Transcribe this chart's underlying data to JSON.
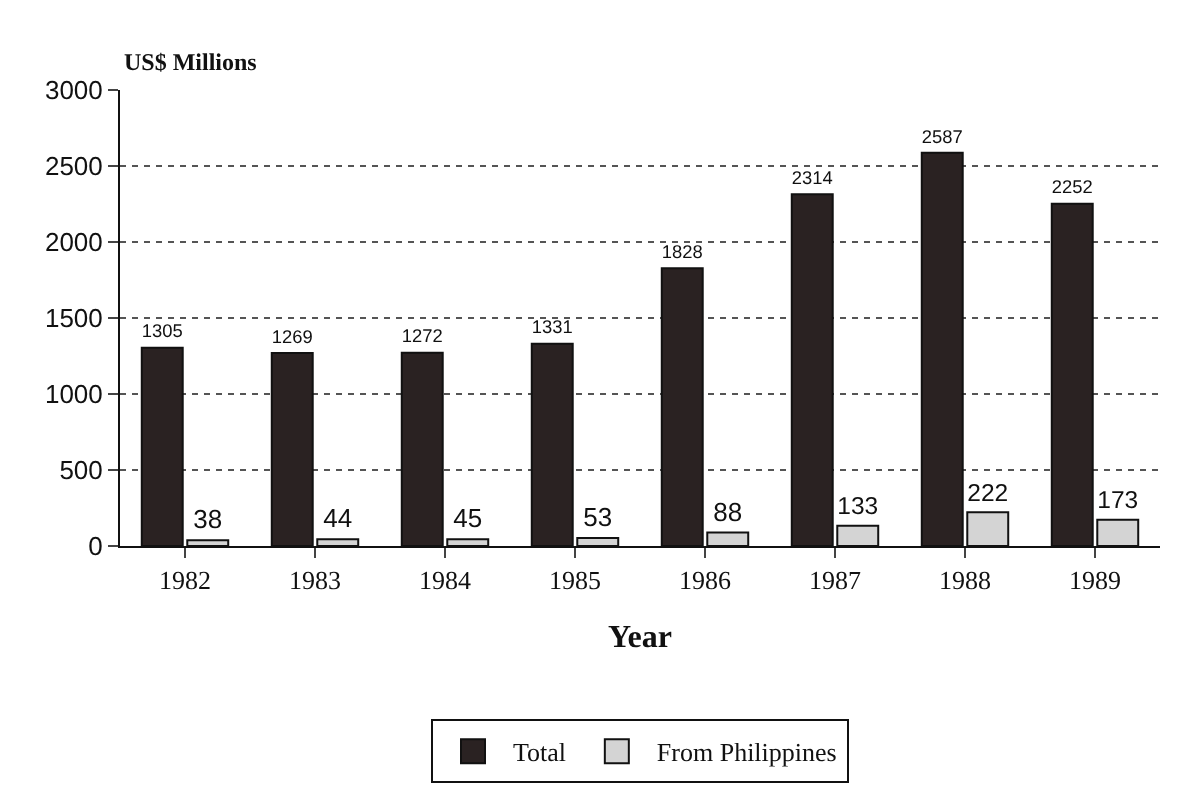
{
  "chart_data": {
    "type": "bar",
    "xlabel": "Year",
    "ylabel": "US$ Millions",
    "categories": [
      "1982",
      "1983",
      "1984",
      "1985",
      "1986",
      "1987",
      "1988",
      "1989"
    ],
    "series": [
      {
        "name": "Total",
        "color": "#2a2222",
        "values": [
          1305,
          1269,
          1272,
          1331,
          1828,
          2314,
          2587,
          2252
        ]
      },
      {
        "name": "From Philippines",
        "color": "#d4d4d4",
        "values": [
          38,
          44,
          45,
          53,
          88,
          133,
          222,
          173
        ]
      }
    ],
    "ylim": [
      0,
      3000
    ],
    "yticks": [
      0,
      500,
      1000,
      1500,
      2000,
      2500,
      3000
    ],
    "grid": "y",
    "legend": "bottom",
    "data_labels": true
  }
}
